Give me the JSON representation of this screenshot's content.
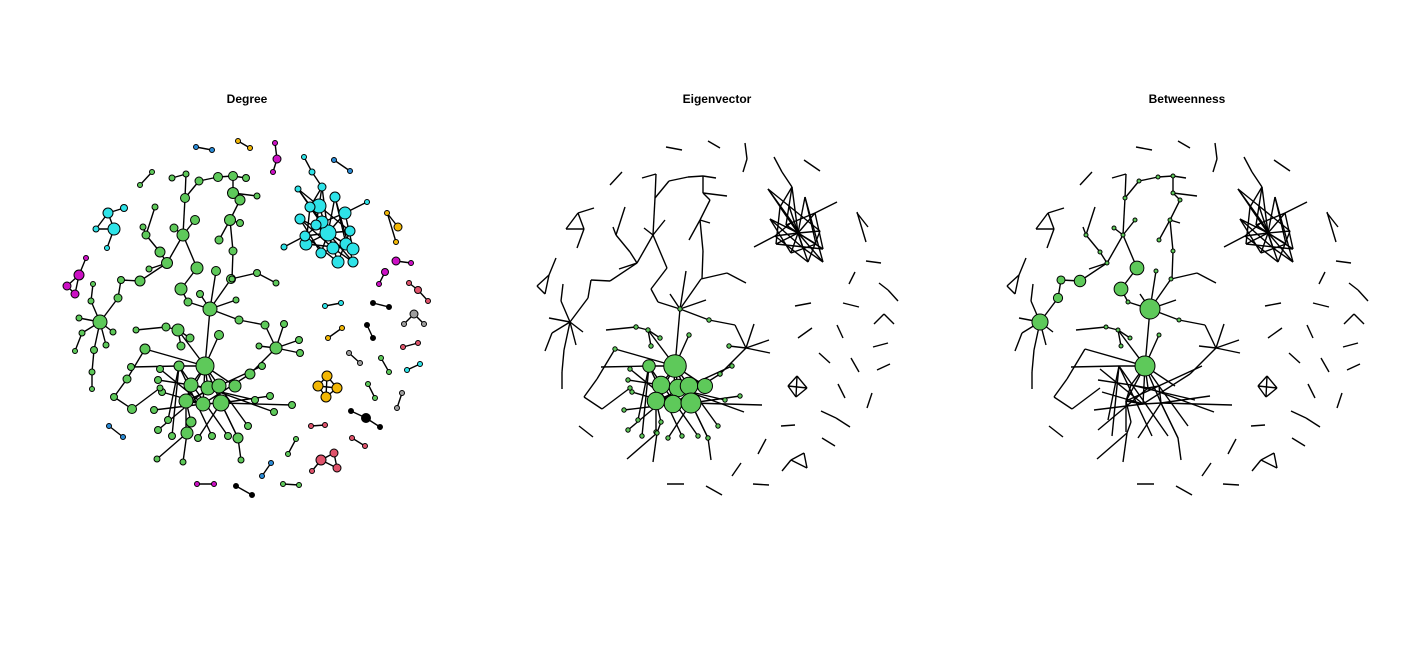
{
  "panels": [
    {
      "title": "Degree"
    },
    {
      "title": "Eigenvector"
    },
    {
      "title": "Betweenness"
    }
  ],
  "colors": {
    "green": "#5ec95a",
    "cyan": "#2ee3e8",
    "magenta": "#cc10c4",
    "gold": "#f2b705",
    "pink": "#df536b",
    "blue": "#2a8bd6",
    "gray": "#9e9e9e",
    "black": "#000000",
    "edge": "#000000"
  }
}
